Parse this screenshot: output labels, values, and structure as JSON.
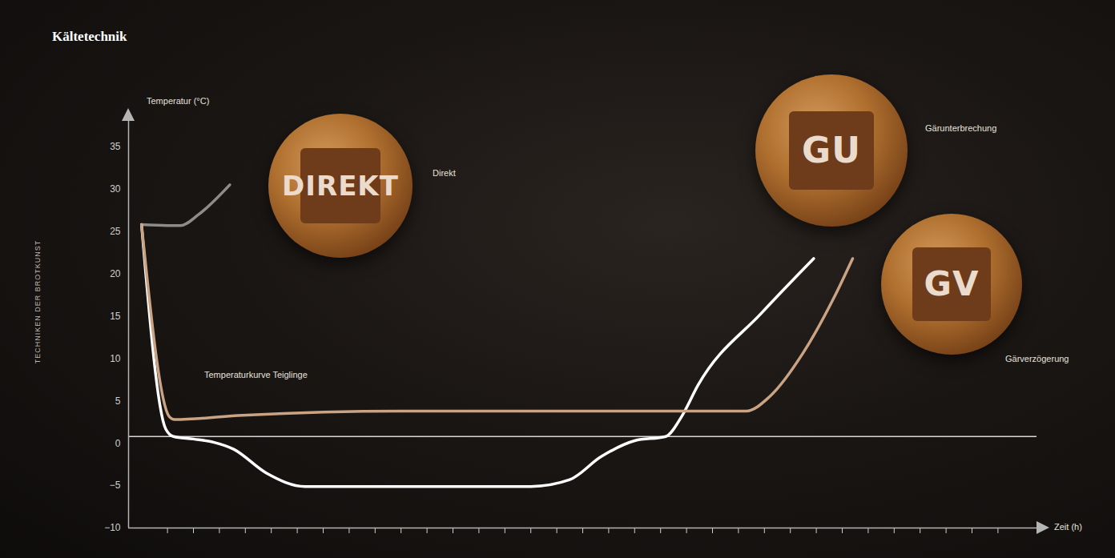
{
  "chart_data": {
    "type": "line",
    "title": "Kältetechnik",
    "side_text": "TECHNIKEN DER BROTKUNST",
    "y_label": "Temperatur (°C)",
    "x_label": "Zeit (h)",
    "annotations": [
      "Temperaturkurve Teiglinge"
    ],
    "xlim": [
      -0.5,
      34.5
    ],
    "xticks": [
      1,
      2,
      3,
      4,
      5,
      6,
      7,
      8,
      9,
      10,
      11,
      12,
      13,
      14,
      15,
      16,
      17,
      18,
      19,
      20,
      21,
      22,
      23,
      24,
      25,
      26,
      27,
      28,
      29,
      30,
      31,
      32,
      33
    ],
    "ylim": [
      -10,
      38
    ],
    "yticks": [
      -10,
      -5,
      0,
      5,
      10,
      15,
      20,
      25,
      30,
      35
    ],
    "tick_labels": "y",
    "reference_line": {
      "y": 0.8,
      "color": "#d8d8d8"
    },
    "series": [
      {
        "name": "Direkt",
        "stamp": "DIREKT",
        "color": "#8c8c8c",
        "x": [
          0,
          1,
          1.5,
          2.2,
          3.4
        ],
        "values": [
          25.8,
          25.7,
          25.7,
          27,
          30.5
        ]
      },
      {
        "name": "Gärunterbrechung",
        "stamp": "GU",
        "color": "#ffffff",
        "x": [
          0,
          0.93,
          1.23,
          2,
          2.8,
          3.55,
          4.8,
          6.3,
          15,
          16.5,
          17.7,
          19,
          20.2,
          20.8,
          21.45,
          23.9,
          25.9
        ],
        "values": [
          25.8,
          1.7,
          0.8,
          0.5,
          0.1,
          -0.7,
          -3.5,
          -5.1,
          -5.1,
          -4.3,
          -1.6,
          0.3,
          0.8,
          3.1,
          6.9,
          15.4,
          21.8
        ]
      },
      {
        "name": "Gärverzögerung",
        "stamp": "GV",
        "color": "#c9a383",
        "x": [
          0,
          1.08,
          1.27,
          3.9,
          10,
          23.3,
          24.2,
          25.5,
          26.7,
          27.4
        ],
        "values": [
          25.8,
          3.1,
          2.8,
          3.3,
          3.8,
          3.8,
          5.5,
          10.7,
          17.3,
          21.8
        ]
      }
    ]
  }
}
